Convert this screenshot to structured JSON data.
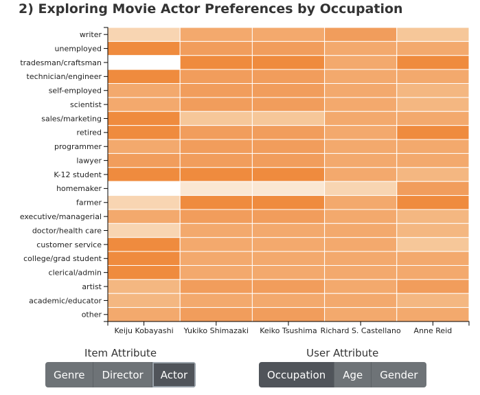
{
  "title": "2) Exploring Movie Actor Preferences by Occupation",
  "colors": {
    "palette": [
      "#ffffff",
      "#fae7d3",
      "#f8d5b2",
      "#f6c799",
      "#f4b781",
      "#f3a96d",
      "#f19d5c",
      "#ef8b3e"
    ],
    "grid_line": "#ffffff",
    "axis": "#000000",
    "button_bg": "#6e7377",
    "button_active_bg": "#50545a"
  },
  "chart_data": {
    "type": "heatmap",
    "x_categories": [
      "Keiju Kobayashi",
      "Yukiko Shimazaki",
      "Keiko Tsushima",
      "Richard S. Castellano",
      "Anne Reid"
    ],
    "y_categories": [
      "writer",
      "unemployed",
      "tradesman/craftsman",
      "technician/engineer",
      "self-employed",
      "scientist",
      "sales/marketing",
      "retired",
      "programmer",
      "lawyer",
      "K-12 student",
      "homemaker",
      "farmer",
      "executive/managerial",
      "doctor/health care",
      "customer service",
      "college/grad student",
      "clerical/admin",
      "artist",
      "academic/educator",
      "other"
    ],
    "value_scale": "relative preference, 0 (lightest) to 7 (darkest)",
    "values": [
      [
        2,
        5,
        5,
        6,
        3
      ],
      [
        7,
        6,
        6,
        5,
        5
      ],
      [
        0,
        7,
        7,
        5,
        7
      ],
      [
        7,
        6,
        6,
        5,
        5
      ],
      [
        5,
        6,
        6,
        5,
        4
      ],
      [
        5,
        6,
        6,
        5,
        4
      ],
      [
        7,
        3,
        3,
        5,
        5
      ],
      [
        7,
        6,
        6,
        5,
        7
      ],
      [
        5,
        6,
        6,
        5,
        5
      ],
      [
        6,
        6,
        6,
        5,
        5
      ],
      [
        7,
        7,
        7,
        5,
        4
      ],
      [
        0,
        1,
        1,
        2,
        6
      ],
      [
        2,
        7,
        7,
        5,
        7
      ],
      [
        5,
        6,
        6,
        5,
        4
      ],
      [
        2,
        5,
        5,
        5,
        4
      ],
      [
        7,
        5,
        5,
        5,
        3
      ],
      [
        7,
        5,
        5,
        5,
        5
      ],
      [
        7,
        5,
        5,
        5,
        5
      ],
      [
        4,
        6,
        6,
        5,
        6
      ],
      [
        4,
        5,
        5,
        5,
        4
      ],
      [
        5,
        6,
        6,
        5,
        5
      ]
    ]
  },
  "item_attribute": {
    "label": "Item Attribute",
    "options": [
      "Genre",
      "Director",
      "Actor"
    ],
    "selected": "Actor"
  },
  "user_attribute": {
    "label": "User Attribute",
    "options": [
      "Occupation",
      "Age",
      "Gender"
    ],
    "selected": "Occupation"
  }
}
